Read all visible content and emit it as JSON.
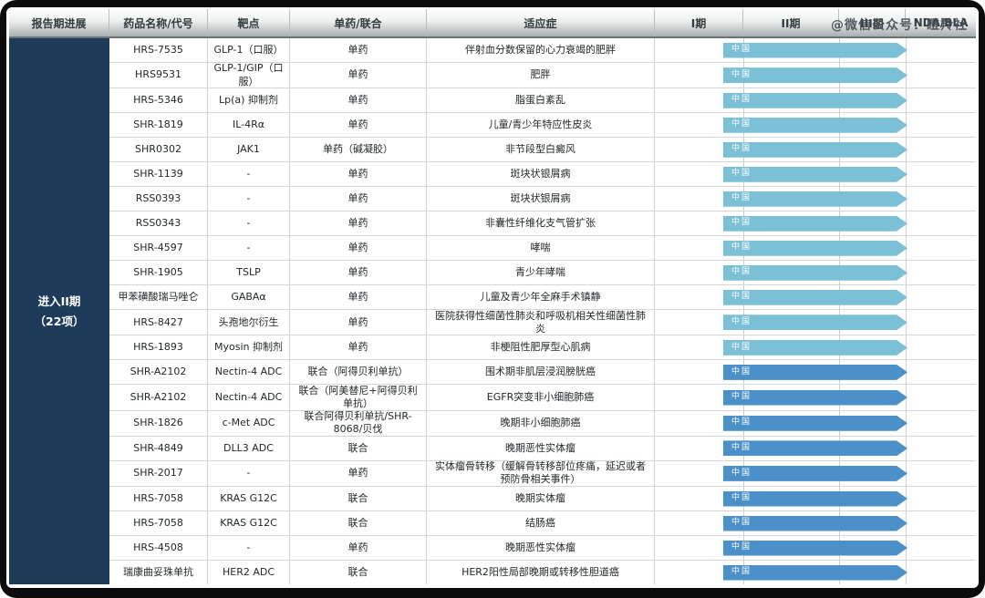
{
  "watermark": "@微信公众号：瞪羚社",
  "sidebar": {
    "line1": "进入II期",
    "line2": "（22项）"
  },
  "colors": {
    "bar_light": "#7CC0D6",
    "bar_dark": "#4B90C8",
    "sidebar_bg": "#1E3C5A"
  },
  "chart_data": {
    "type": "table",
    "title": "进入II期（22项）",
    "columns": [
      "报告期进展",
      "药品名称/代号",
      "靶点",
      "单药/联合",
      "适应症",
      "I期",
      "II期",
      "III期",
      "NDA/BLA"
    ],
    "phase_bar_label": "中国",
    "phase_bar_span": [
      "I期",
      "II期"
    ],
    "rows": [
      {
        "drug": "HRS-7535",
        "target": "GLP-1（口服）",
        "mono": "单药",
        "indication": "伴射血分数保留的心力衰竭的肥胖",
        "bar": "light"
      },
      {
        "drug": "HRS9531",
        "target": "GLP-1/GIP（口服）",
        "mono": "单药",
        "indication": "肥胖",
        "bar": "light"
      },
      {
        "drug": "HRS-5346",
        "target": "Lp(a) 抑制剂",
        "mono": "单药",
        "indication": "脂蛋白紊乱",
        "bar": "light"
      },
      {
        "drug": "SHR-1819",
        "target": "IL-4Rα",
        "mono": "单药",
        "indication": "儿童/青少年特应性皮炎",
        "bar": "light"
      },
      {
        "drug": "SHR0302",
        "target": "JAK1",
        "mono": "单药（碱凝胶）",
        "indication": "非节段型白癜风",
        "bar": "light"
      },
      {
        "drug": "SHR-1139",
        "target": "-",
        "mono": "单药",
        "indication": "斑块状银屑病",
        "bar": "light"
      },
      {
        "drug": "RSS0393",
        "target": "-",
        "mono": "单药",
        "indication": "斑块状银屑病",
        "bar": "light"
      },
      {
        "drug": "RSS0343",
        "target": "-",
        "mono": "单药",
        "indication": "非囊性纤维化支气管扩张",
        "bar": "light"
      },
      {
        "drug": "SHR-4597",
        "target": "-",
        "mono": "单药",
        "indication": "哮喘",
        "bar": "light"
      },
      {
        "drug": "SHR-1905",
        "target": "TSLP",
        "mono": "单药",
        "indication": "青少年哮喘",
        "bar": "light"
      },
      {
        "drug": "甲苯磺酸瑞马唑仑",
        "target": "GABAα",
        "mono": "单药",
        "indication": "儿童及青少年全麻手术镇静",
        "bar": "light"
      },
      {
        "drug": "HRS-8427",
        "target": "头孢地尔衍生",
        "mono": "单药",
        "indication": "医院获得性细菌性肺炎和呼吸机相关性细菌性肺炎",
        "bar": "light"
      },
      {
        "drug": "HRS-1893",
        "target": "Myosin 抑制剂",
        "mono": "单药",
        "indication": "非梗阻性肥厚型心肌病",
        "bar": "light"
      },
      {
        "drug": "SHR-A2102",
        "target": "Nectin-4 ADC",
        "mono": "联合（阿得贝利单抗）",
        "indication": "围术期非肌层浸润膀胱癌",
        "bar": "dark"
      },
      {
        "drug": "SHR-A2102",
        "target": "Nectin-4 ADC",
        "mono": "联合（阿美替尼+阿得贝利单抗）",
        "indication": "EGFR突变非小细胞肺癌",
        "bar": "dark"
      },
      {
        "drug": "SHR-1826",
        "target": "c-Met ADC",
        "mono": "联合阿得贝利单抗/SHR-8068/贝伐",
        "indication": "晚期非小细胞肺癌",
        "bar": "dark"
      },
      {
        "drug": "SHR-4849",
        "target": "DLL3 ADC",
        "mono": "联合",
        "indication": "晚期恶性实体瘤",
        "bar": "dark"
      },
      {
        "drug": "SHR-2017",
        "target": "-",
        "mono": "单药",
        "indication": "实体瘤骨转移（缓解骨转移部位疼痛，延迟或者预防骨相关事件）",
        "bar": "dark"
      },
      {
        "drug": "HRS-7058",
        "target": "KRAS G12C",
        "mono": "联合",
        "indication": "晚期实体瘤",
        "bar": "dark"
      },
      {
        "drug": "HRS-7058",
        "target": "KRAS G12C",
        "mono": "联合",
        "indication": "结肠癌",
        "bar": "dark"
      },
      {
        "drug": "HRS-4508",
        "target": "-",
        "mono": "单药",
        "indication": "晚期恶性实体瘤",
        "bar": "dark"
      },
      {
        "drug": "瑞康曲妥珠单抗",
        "target": "HER2 ADC",
        "mono": "联合",
        "indication": "HER2阳性局部晚期或转移性胆道癌",
        "bar": "dark"
      }
    ]
  }
}
